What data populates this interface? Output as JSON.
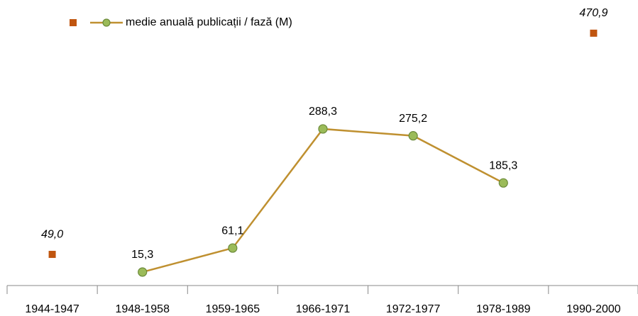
{
  "chart_data": {
    "type": "line",
    "categories": [
      "1944-1947",
      "1948-1958",
      "1959-1965",
      "1966-1971",
      "1972-1977",
      "1978-1989",
      "1990-2000"
    ],
    "series": [
      {
        "color": "#c0550f",
        "marker": "square",
        "label_style": "italic",
        "values": [
          49.0,
          null,
          null,
          null,
          null,
          null,
          470.9
        ],
        "value_labels": [
          "49,0",
          null,
          null,
          null,
          null,
          null,
          "470,9"
        ]
      },
      {
        "name": "medie anuală publicații / fază (M)",
        "color": "#bf9030",
        "marker_color": "#9bbb59",
        "marker": "circle",
        "values": [
          null,
          15.3,
          61.1,
          288.3,
          275.2,
          185.3,
          null
        ],
        "value_labels": [
          null,
          "15,3",
          "61,1",
          "288,3",
          "275,2",
          "185,3",
          null
        ]
      }
    ],
    "ylim": [
      -10,
      500
    ],
    "legend": "top-left"
  }
}
